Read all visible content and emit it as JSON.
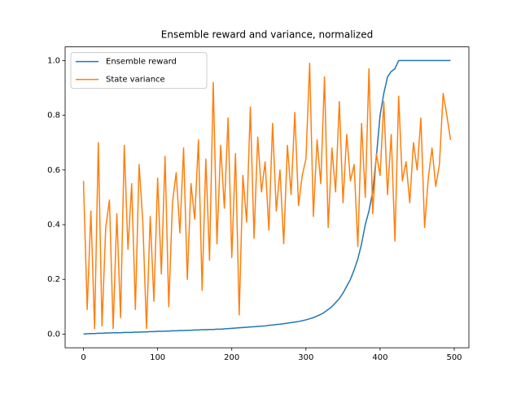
{
  "chart_data": {
    "type": "line",
    "title": "Ensemble reward and variance, normalized",
    "x": [
      0,
      5,
      10,
      15,
      20,
      25,
      30,
      35,
      40,
      45,
      50,
      55,
      60,
      65,
      70,
      75,
      80,
      85,
      90,
      95,
      100,
      105,
      110,
      115,
      120,
      125,
      130,
      135,
      140,
      145,
      150,
      155,
      160,
      165,
      170,
      175,
      180,
      185,
      190,
      195,
      200,
      205,
      210,
      215,
      220,
      225,
      230,
      235,
      240,
      245,
      250,
      255,
      260,
      265,
      270,
      275,
      280,
      285,
      290,
      295,
      300,
      305,
      310,
      315,
      320,
      325,
      330,
      335,
      340,
      345,
      350,
      355,
      360,
      365,
      370,
      375,
      380,
      385,
      390,
      395,
      400,
      405,
      410,
      415,
      420,
      425,
      430,
      435,
      440,
      445,
      450,
      455,
      460,
      465,
      470,
      475,
      480,
      485,
      490,
      495
    ],
    "series": [
      {
        "name": "Ensemble reward",
        "color": "#1f77b4",
        "values": [
          0.0,
          0.001,
          0.002,
          0.002,
          0.003,
          0.003,
          0.004,
          0.004,
          0.005,
          0.005,
          0.005,
          0.006,
          0.006,
          0.006,
          0.007,
          0.007,
          0.008,
          0.008,
          0.009,
          0.009,
          0.01,
          0.01,
          0.011,
          0.011,
          0.012,
          0.012,
          0.013,
          0.013,
          0.014,
          0.014,
          0.015,
          0.015,
          0.016,
          0.016,
          0.017,
          0.017,
          0.018,
          0.018,
          0.019,
          0.02,
          0.021,
          0.022,
          0.023,
          0.024,
          0.025,
          0.026,
          0.027,
          0.028,
          0.029,
          0.03,
          0.032,
          0.033,
          0.035,
          0.036,
          0.038,
          0.04,
          0.042,
          0.044,
          0.046,
          0.049,
          0.052,
          0.056,
          0.06,
          0.066,
          0.072,
          0.08,
          0.09,
          0.1,
          0.115,
          0.13,
          0.15,
          0.175,
          0.2,
          0.235,
          0.275,
          0.33,
          0.4,
          0.45,
          0.52,
          0.65,
          0.8,
          0.88,
          0.94,
          0.96,
          0.97,
          1.0,
          1.0,
          1.0,
          1.0,
          1.0,
          1.0,
          1.0,
          1.0,
          1.0,
          1.0,
          1.0,
          1.0,
          1.0,
          1.0,
          1.0
        ]
      },
      {
        "name": "State variance",
        "color": "#ff7f0e",
        "values": [
          0.56,
          0.09,
          0.45,
          0.02,
          0.7,
          0.03,
          0.39,
          0.49,
          0.02,
          0.44,
          0.06,
          0.69,
          0.31,
          0.55,
          0.09,
          0.62,
          0.41,
          0.02,
          0.43,
          0.12,
          0.57,
          0.22,
          0.65,
          0.1,
          0.48,
          0.59,
          0.37,
          0.68,
          0.2,
          0.55,
          0.42,
          0.71,
          0.16,
          0.64,
          0.27,
          0.92,
          0.33,
          0.69,
          0.46,
          0.79,
          0.28,
          0.66,
          0.07,
          0.58,
          0.41,
          0.83,
          0.35,
          0.72,
          0.52,
          0.63,
          0.38,
          0.77,
          0.45,
          0.6,
          0.33,
          0.69,
          0.51,
          0.81,
          0.47,
          0.58,
          0.64,
          0.99,
          0.43,
          0.71,
          0.55,
          0.94,
          0.39,
          0.68,
          0.52,
          0.85,
          0.48,
          0.73,
          0.56,
          0.62,
          0.32,
          0.77,
          0.5,
          0.97,
          0.44,
          0.66,
          0.58,
          0.85,
          0.51,
          0.73,
          0.34,
          0.87,
          0.56,
          0.63,
          0.48,
          0.7,
          0.6,
          0.79,
          0.39,
          0.57,
          0.68,
          0.54,
          0.62,
          0.88,
          0.8,
          0.71
        ]
      }
    ],
    "xlim": [
      -24.75,
      519.75
    ],
    "xticks": [
      0,
      100,
      200,
      300,
      400,
      500
    ],
    "ylim": [
      -0.05,
      1.05
    ],
    "yticks": [
      {
        "value": 0,
        "label": "0.0"
      },
      {
        "value": 0.2,
        "label": "0.2"
      },
      {
        "value": 0.4,
        "label": "0.4"
      },
      {
        "value": 0.6,
        "label": "0.6"
      },
      {
        "value": 0.8,
        "label": "0.8"
      },
      {
        "value": 1.0,
        "label": "1.0"
      }
    ],
    "legend": "upper left"
  }
}
